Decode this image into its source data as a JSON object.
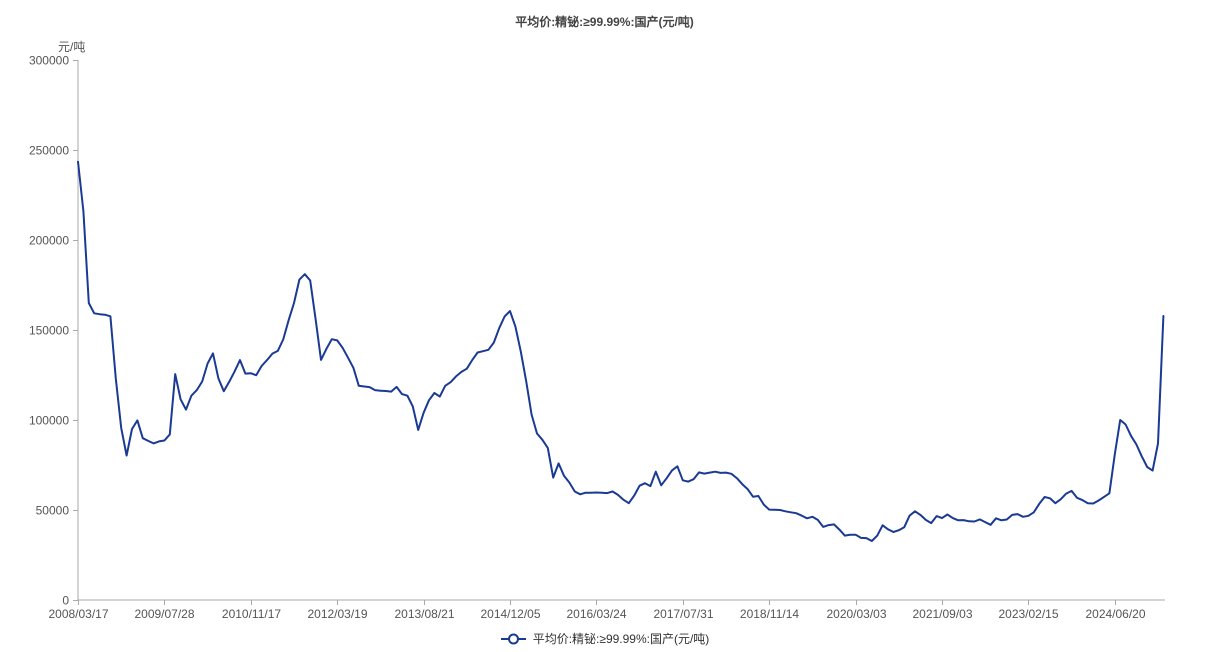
{
  "page": {
    "background": "#ffffff"
  },
  "colors": {
    "line": "#1a3a93",
    "axis": "#aaaaaa",
    "tick_text": "#555555",
    "title_text": "#444444",
    "legend_text": "#333333"
  },
  "chart_data": {
    "type": "line",
    "title": "平均价:精铋:≥99.99%:国产(元/吨)",
    "grid": false,
    "legend_position": "bottom-center",
    "legend": {
      "label": "平均价:精铋:≥99.99%:国产(元/吨)",
      "marker": "line-with-hollow-circle"
    },
    "y_axis": {
      "unit": "元/吨",
      "min": 0,
      "max": 300000,
      "ticks": [
        0,
        50000,
        100000,
        150000,
        200000,
        250000,
        300000
      ]
    },
    "x_axis": {
      "tick_labels": [
        "2008/03/17",
        "2009/07/28",
        "2010/11/17",
        "2012/03/19",
        "2013/08/21",
        "2014/12/05",
        "2016/03/24",
        "2017/07/31",
        "2018/11/14",
        "2020/03/03",
        "2021/09/03",
        "2023/02/15",
        "2024/06/20"
      ]
    },
    "series": [
      {
        "name": "平均价:精铋:≥99.99%:国产(元/吨)",
        "color": "#1a3a93",
        "points_per_tick_interval": 16,
        "values": [
          243500,
          216000,
          165000,
          159300,
          158800,
          158500,
          157600,
          123000,
          95600,
          80300,
          95000,
          99800,
          89900,
          88400,
          87000,
          88100,
          88600,
          92000,
          125500,
          111500,
          105800,
          113500,
          116600,
          121400,
          131400,
          137000,
          123100,
          116000,
          121200,
          127000,
          133300,
          125800,
          126000,
          124900,
          130000,
          133300,
          136900,
          138400,
          144700,
          155400,
          165000,
          178000,
          181000,
          177500,
          156000,
          133400,
          139500,
          144900,
          144200,
          140100,
          134600,
          129000,
          119000,
          118600,
          118300,
          116600,
          116300,
          116100,
          115800,
          118400,
          114400,
          113500,
          107500,
          94500,
          104000,
          111000,
          115000,
          113000,
          119000,
          121000,
          124200,
          126700,
          128500,
          133300,
          137500,
          138200,
          139000,
          143000,
          151000,
          157500,
          160500,
          151900,
          138000,
          121500,
          103000,
          92500,
          89000,
          84500,
          68000,
          75900,
          69000,
          65200,
          60300,
          58700,
          59600,
          59600,
          59700,
          59600,
          59400,
          60300,
          58400,
          55700,
          53800,
          58000,
          63500,
          64900,
          63300,
          71300,
          63700,
          67600,
          72000,
          74300,
          66500,
          65800,
          67100,
          70900,
          70200,
          70800,
          71300,
          70600,
          70800,
          70100,
          67700,
          64400,
          61600,
          57400,
          57800,
          53000,
          50200,
          50100,
          50000,
          49300,
          48700,
          48200,
          46900,
          45400,
          46200,
          44500,
          40600,
          41600,
          42000,
          39100,
          35800,
          36200,
          36300,
          34500,
          34400,
          32800,
          35700,
          41500,
          39300,
          37800,
          38800,
          40400,
          46900,
          49300,
          47300,
          44500,
          42700,
          46600,
          45500,
          47500,
          45500,
          44300,
          44400,
          43700,
          43600,
          44800,
          43300,
          41800,
          45400,
          44300,
          44700,
          47300,
          47700,
          46200,
          46800,
          48700,
          53400,
          57200,
          56500,
          53800,
          56000,
          59100,
          60600,
          56800,
          55500,
          53800,
          53600,
          55300,
          57300,
          59300,
          81000,
          100000,
          97500,
          91200,
          86400,
          79800,
          73900,
          71900,
          87000,
          157800
        ]
      }
    ]
  }
}
